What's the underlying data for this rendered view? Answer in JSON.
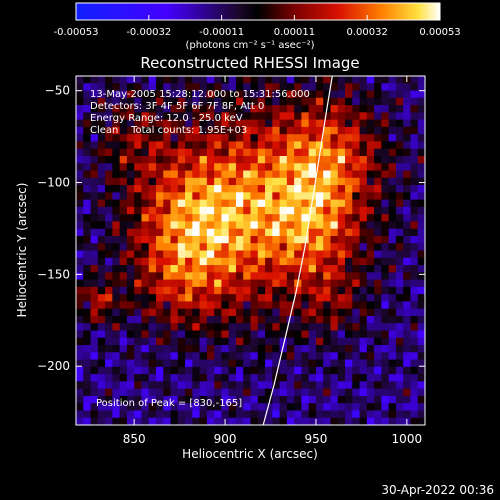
{
  "colorbar": {
    "ticks": [
      "-0.00053",
      "-0.00032",
      "-0.00011",
      "0.00011",
      "0.00032",
      "0.00053"
    ],
    "label": "(photons cm⁻² s⁻¹ asec⁻²)",
    "range": [
      -0.00053,
      0.00053
    ]
  },
  "chart_data": {
    "type": "heatmap",
    "title": "Reconstructed RHESSI Image",
    "xlabel": "Heliocentric X (arcsec)",
    "ylabel": "Heliocentric Y (arcsec)",
    "xlim": [
      818,
      1010
    ],
    "ylim": [
      -232,
      -42
    ],
    "x_ticks": [
      850,
      900,
      950,
      1000
    ],
    "y_ticks": [
      -50,
      -100,
      -150,
      -200
    ],
    "annotations": [
      "13-May-2005 15:28:12.000 to 15:31:56.000",
      "Detectors: 3F 4F 5F 6F 7F 8F, Att 0",
      "Energy Range: 12.0 - 25.0 keV",
      "Clean    Total counts: 1.95E+03"
    ],
    "peak_label": "Position of Peak = [830,-165]",
    "peak": [
      830,
      -165
    ],
    "limb_curve": [
      [
        921,
        -232
      ],
      [
        927,
        -210
      ],
      [
        933,
        -185
      ],
      [
        939,
        -160
      ],
      [
        944,
        -135
      ],
      [
        948,
        -110
      ],
      [
        952,
        -85
      ],
      [
        956,
        -60
      ],
      [
        959,
        -42
      ]
    ],
    "emission_sources": [
      {
        "x": 915,
        "y": -115,
        "sx": 38,
        "sy": 38,
        "a": 1.0
      },
      {
        "x": 880,
        "y": -120,
        "sx": 22,
        "sy": 22,
        "a": 0.55
      },
      {
        "x": 875,
        "y": -155,
        "sx": 18,
        "sy": 18,
        "a": 0.45
      },
      {
        "x": 958,
        "y": -85,
        "sx": 20,
        "sy": 22,
        "a": 0.65
      },
      {
        "x": 950,
        "y": -125,
        "sx": 16,
        "sy": 20,
        "a": 0.45
      },
      {
        "x": 848,
        "y": -75,
        "sx": 16,
        "sy": 16,
        "a": 0.35
      },
      {
        "x": 830,
        "y": -165,
        "sx": 8,
        "sy": 8,
        "a": 0.6
      },
      {
        "x": 960,
        "y": -165,
        "sx": 12,
        "sy": 12,
        "a": 0.3
      }
    ]
  },
  "footer": {
    "date": "30-Apr-2022 00:36"
  }
}
